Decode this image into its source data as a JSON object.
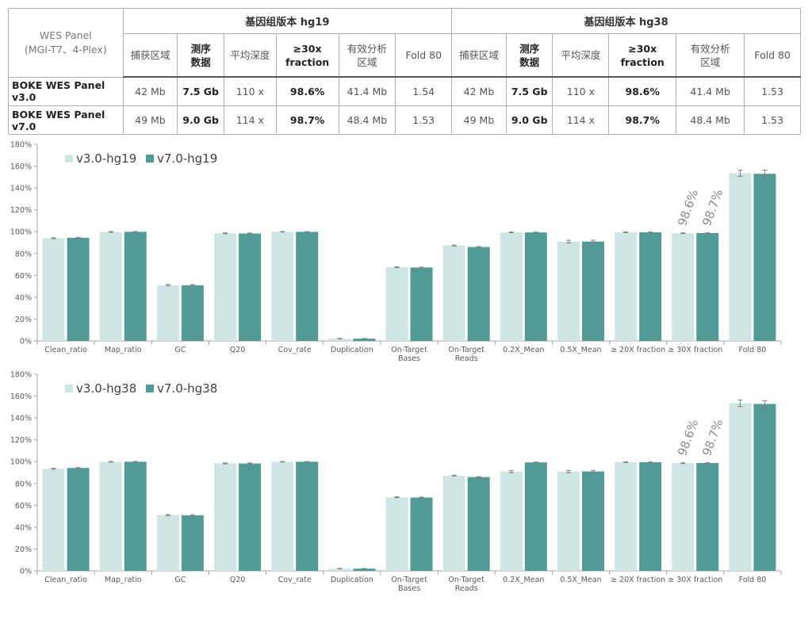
{
  "table": {
    "panel_header": [
      "WES Panel",
      "(MGI-T7、4-Plex)"
    ],
    "groups": [
      "基因组版本 hg19",
      "基因组版本 hg38"
    ],
    "columns": [
      [
        "捕获区域"
      ],
      [
        "测序",
        "数据"
      ],
      [
        "平均深度"
      ],
      [
        "≥30x",
        "fraction"
      ],
      [
        "有效分析",
        "区域"
      ],
      [
        "Fold 80"
      ]
    ],
    "bold_columns": [
      1,
      3
    ],
    "rows": [
      {
        "name": "BOKE WES Panel v3.0",
        "hg19": [
          "42 Mb",
          "7.5 Gb",
          "110 x",
          "98.6%",
          "41.4 Mb",
          "1.54"
        ],
        "hg38": [
          "42 Mb",
          "7.5 Gb",
          "110 x",
          "98.6%",
          "41.4 Mb",
          "1.53"
        ]
      },
      {
        "name": "BOKE WES Panel v7.0",
        "hg19": [
          "49 Mb",
          "9.0 Gb",
          "114 x",
          "98.7%",
          "48.4 Mb",
          "1.53"
        ],
        "hg38": [
          "49 Mb",
          "9.0 Gb",
          "114 x",
          "98.7%",
          "48.4 Mb",
          "1.53"
        ]
      }
    ]
  },
  "colors": {
    "light": "#cfe5e3",
    "dark": "#529a95",
    "axis": "#a6a6a6",
    "tick_text": "#595959"
  },
  "chart_data": [
    {
      "type": "bar",
      "ylim": [
        0,
        180
      ],
      "ytick_step": 20,
      "ytick_suffix": "%",
      "grid": false,
      "legend_position": "top-left",
      "categories": [
        [
          "Clean_ratio"
        ],
        [
          "Map_ratio"
        ],
        [
          "GC"
        ],
        [
          "Q20"
        ],
        [
          "Cov_rate"
        ],
        [
          "Duplication"
        ],
        [
          "On-Target",
          "Bases"
        ],
        [
          "On-Target",
          "Reads"
        ],
        [
          "0.2X_Mean"
        ],
        [
          "0.5X_Mean"
        ],
        [
          "≥ 20X fraction"
        ],
        [
          "≥ 30X fraction"
        ],
        [
          "Fold 80"
        ]
      ],
      "series": [
        {
          "name": "v3.0-hg19",
          "values": [
            94,
            99.8,
            51.2,
            98.5,
            99.9,
            2.1,
            67.5,
            87.3,
            99.4,
            90.9,
            99.5,
            98.6,
            153.5
          ],
          "errors": [
            0.4,
            0.3,
            0.5,
            0.4,
            0.2,
            0.2,
            0.4,
            0.4,
            0.3,
            1.2,
            0.3,
            0.3,
            2.8
          ]
        },
        {
          "name": "v7.0-hg19",
          "values": [
            94.4,
            99.9,
            51,
            98.4,
            99.9,
            2.1,
            67.2,
            86,
            99.3,
            91,
            99.4,
            98.7,
            153
          ],
          "errors": [
            0.4,
            0.3,
            0.5,
            0.4,
            0.2,
            0.2,
            0.4,
            0.4,
            0.3,
            1.2,
            0.3,
            0.3,
            3.5
          ]
        }
      ],
      "annotations": [
        {
          "category_index": 11,
          "series_index": 0,
          "text": "98.6%"
        },
        {
          "category_index": 11,
          "series_index": 1,
          "text": "98.7%"
        }
      ]
    },
    {
      "type": "bar",
      "ylim": [
        0,
        180
      ],
      "ytick_step": 20,
      "ytick_suffix": "%",
      "grid": false,
      "legend_position": "top-left",
      "categories": [
        [
          "Clean_ratio"
        ],
        [
          "Map_ratio"
        ],
        [
          "GC"
        ],
        [
          "Q20"
        ],
        [
          "Cov_rate"
        ],
        [
          "Duplication"
        ],
        [
          "On-Target",
          "Bases"
        ],
        [
          "On-Target",
          "Reads"
        ],
        [
          "0.2X_Mean"
        ],
        [
          "0.5X_Mean"
        ],
        [
          "≥ 20X fraction"
        ],
        [
          "≥ 30X fraction"
        ],
        [
          "Fold 80"
        ]
      ],
      "series": [
        {
          "name": "v3.0-hg38",
          "values": [
            93.5,
            99.8,
            51.1,
            98.4,
            99.9,
            2.0,
            67.4,
            87.2,
            90.9,
            90.9,
            99.5,
            98.6,
            153.5
          ],
          "errors": [
            0.4,
            0.3,
            0.5,
            0.4,
            0.2,
            0.2,
            0.4,
            0.4,
            1.0,
            1.0,
            0.3,
            0.3,
            3.0
          ]
        },
        {
          "name": "v7.0-hg38",
          "values": [
            94.2,
            99.9,
            50.9,
            98.3,
            99.9,
            2.0,
            67.1,
            85.9,
            99.3,
            91,
            99.4,
            98.7,
            152.8
          ],
          "errors": [
            0.4,
            0.3,
            0.5,
            0.4,
            0.2,
            0.2,
            0.4,
            0.4,
            0.3,
            1.0,
            0.3,
            0.3,
            3.0
          ]
        }
      ],
      "annotations": [
        {
          "category_index": 11,
          "series_index": 0,
          "text": "98.6%"
        },
        {
          "category_index": 11,
          "series_index": 1,
          "text": "98.7%"
        }
      ]
    }
  ]
}
